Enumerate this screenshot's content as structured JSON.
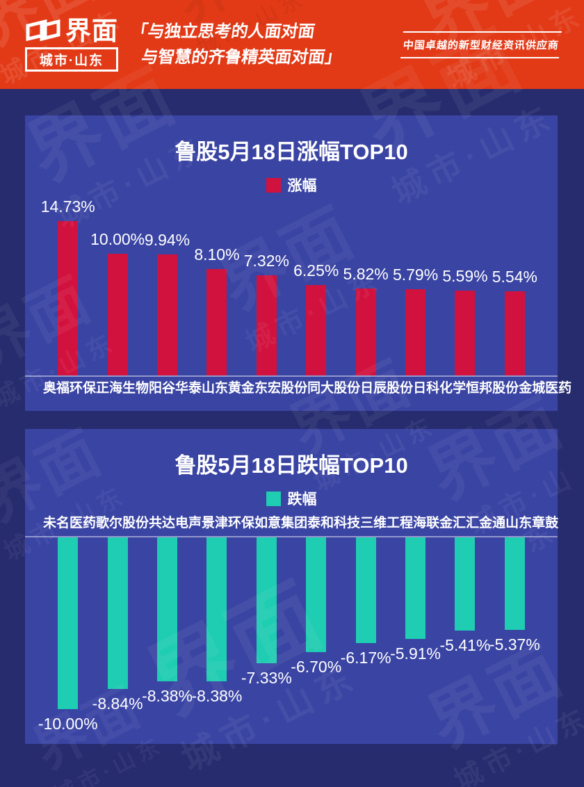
{
  "page": {
    "bg_color": "#272C6F",
    "panel_color": "#3A44A3"
  },
  "header": {
    "bg_color": "#E23A17",
    "logo_text": "界面",
    "logo_sub": "城市·山东",
    "quote_line1": "「与独立思考的人面对面",
    "quote_line2": "与智慧的齐鲁精英面对面」",
    "tagline": "中国卓越的新型财经资讯供应商"
  },
  "watermark": {
    "line1": "界面",
    "line2": "城市·山东"
  },
  "chart_data": [
    {
      "type": "bar",
      "title": "鲁股5月18日涨幅TOP10",
      "legend": "涨幅",
      "legend_position": "top",
      "bar_color": "#D2123E",
      "direction": "up",
      "grid": false,
      "categories": [
        "奥福环保",
        "正海生物",
        "阳谷华泰",
        "山东黄金",
        "东宏股份",
        "同大股份",
        "日辰股份",
        "日科化学",
        "恒邦股份",
        "金城医药"
      ],
      "values": [
        14.73,
        10.0,
        9.94,
        8.1,
        7.32,
        6.25,
        5.82,
        5.79,
        5.59,
        5.54
      ],
      "labels": [
        "14.73%",
        "10.00%",
        "9.94%",
        "8.10%",
        "7.32%",
        "6.25%",
        "5.82%",
        "5.79%",
        "5.59%",
        "5.54%"
      ],
      "xlabel": "",
      "ylabel": "",
      "ylim": [
        0,
        15
      ]
    },
    {
      "type": "bar",
      "title": "鲁股5月18日跌幅TOP10",
      "legend": "跌幅",
      "legend_position": "top",
      "bar_color": "#1FCDB2",
      "direction": "down",
      "grid": false,
      "categories": [
        "未名医药",
        "歌尔股份",
        "共达电声",
        "景津环保",
        "如意集团",
        "泰和科技",
        "三维工程",
        "海联金汇",
        "汇金通",
        "山东章鼓"
      ],
      "values": [
        -10.0,
        -8.84,
        -8.38,
        -8.38,
        -7.33,
        -6.7,
        -6.17,
        -5.91,
        -5.41,
        -5.37
      ],
      "labels": [
        "-10.00%",
        "-8.84%",
        "-8.38%",
        "-8.38%",
        "-7.33%",
        "-6.70%",
        "-6.17%",
        "-5.91%",
        "-5.41%",
        "-5.37%"
      ],
      "xlabel": "",
      "ylabel": "",
      "ylim": [
        -10.5,
        0
      ]
    }
  ]
}
